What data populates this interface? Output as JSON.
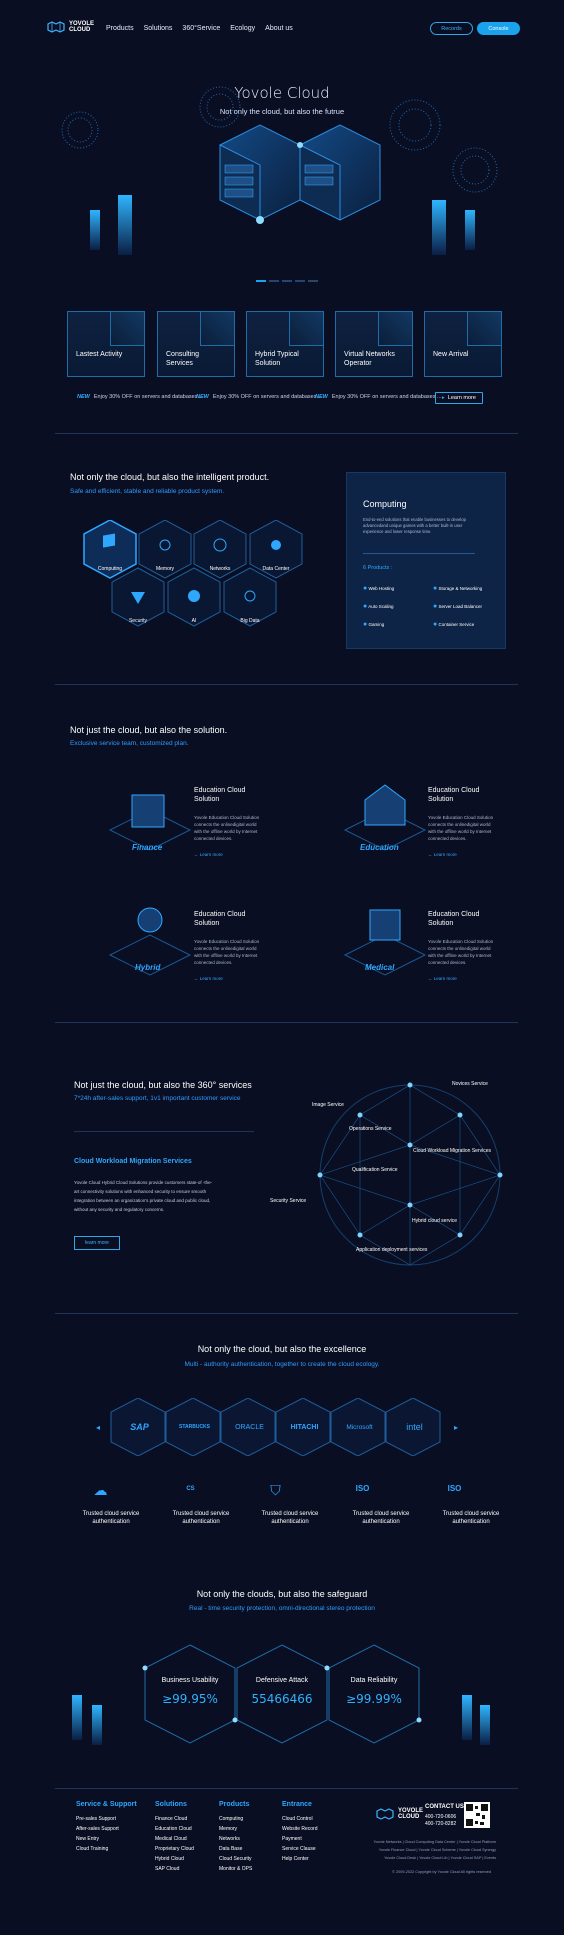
{
  "header": {
    "logo_top": "YOVOLE",
    "logo_bottom": "CLOUD",
    "nav": [
      "Products",
      "Solutions",
      "360°Service",
      "Ecology",
      "About us"
    ],
    "records_label": "Records",
    "console_label": "Console"
  },
  "hero": {
    "title": "Yovole Cloud",
    "subtitle": "Not only the cloud, but also the futrue"
  },
  "cards": [
    "Lastest Activity",
    "Consulting Services",
    "Hybrid Typical Solution",
    "Virtual Networks Operator",
    "New Arrival"
  ],
  "ticker": {
    "badge": "NEW",
    "items": [
      "Enjoy 30% OFF on servers and databases ...",
      "Enjoy 30% OFF on servers and databases ...",
      "Enjoy 30% OFF on servers and databases ..."
    ],
    "learn_more": "Learn more"
  },
  "product": {
    "title": "Not only the cloud, but also the intelligent product.",
    "subtitle": "Safe and efficient, stable and reliable product system.",
    "hexes": [
      "Computing",
      "Memory",
      "Networks",
      "Data Center",
      "Security",
      "AI",
      "Big Data"
    ],
    "panel": {
      "title": "Computing",
      "desc": "End-to-end solutions that enable businesses to develop advancedand unique games with a better built-in user experience and lower response time.",
      "count_label": "6 Products :",
      "products": [
        "Web Hosting",
        "Storage & Networking",
        "Auto Scaling",
        "Server Load Balancer",
        "Gaming",
        "Container Service"
      ]
    }
  },
  "solutions": {
    "title": "Not just the cloud, but also the solution.",
    "subtitle": "Exclusive service team, customized plan.",
    "items": [
      {
        "title": "Education Cloud Solution",
        "text": "Yovole Education Cloud Solution connects the onlinedigital world with the offline world by Internet connected devices.",
        "link": "Learn more",
        "tag": "Finance"
      },
      {
        "title": "Education Cloud Solution",
        "text": "Yovole Education Cloud Solution connects the onlinedigital world with the offline world by Internet connected devices.",
        "link": "Learn more",
        "tag": "Education"
      },
      {
        "title": "Education Cloud Solution",
        "text": "Yovole Education Cloud Solution connects the onlinedigital world with the offline world by Internet connected devices.",
        "link": "Learn more",
        "tag": "Hybrid"
      },
      {
        "title": "Education Cloud Solution",
        "text": "Yovole Education Cloud Solution connects the onlinedigital world with the offline world by Internet connected devices.",
        "link": "Learn more",
        "tag": "Medical"
      }
    ]
  },
  "service": {
    "title": "Not just the cloud, but also the 360° services",
    "subtitle": "7*24h after-sales support, 1v1 important customer service",
    "block_title": "Cloud Workload Migration Services",
    "block_text": "Yovole Cloud Hybrid Cloud Solutions provide customers state-of -the-art connectivity solutions with enhanced security to ensure smooth integration between an organization's private cloud and public cloud, without any security and regulatory concerns.",
    "learn_more": "learn more",
    "globe_labels": [
      "Novices Service",
      "Image Service",
      "Operations Service",
      "Cloud Workload Migration Services",
      "Qualification Service",
      "Security Service",
      "Hybrid cloud service",
      "Application deployment services"
    ]
  },
  "excellence": {
    "title": "Not only the cloud, but also the excellence",
    "subtitle": "Multi - authority authentication, together to create the cloud ecology.",
    "partners": [
      "SAP",
      "STARBUCKS",
      "ORACLE",
      "HITACHI",
      "Microsoft",
      "intel"
    ],
    "trust_label": "Trusted cloud service authentication",
    "badges": [
      "CS",
      "ISO",
      "ISO"
    ]
  },
  "safeguard": {
    "title": "Not only the clouds, but also the safeguard",
    "subtitle": "Real - time security protection, omni-directional stereo protection",
    "stats": [
      {
        "title": "Business Usability",
        "value": "≥99.95%"
      },
      {
        "title": "Defensive Attack",
        "value": "55466466"
      },
      {
        "title": "Data Reliability",
        "value": "≥99.99%"
      }
    ]
  },
  "footer": {
    "cols": [
      {
        "title": "Service & Support",
        "items": [
          "Pre-sales Support",
          "After-sales Support",
          "New Entry",
          "Cloud Training"
        ]
      },
      {
        "title": "Solutions",
        "items": [
          "Finance Cloud",
          "Education Cloud",
          "Medical Cloud",
          "Proprietary Cloud",
          "Hybrid Cloud",
          "SAP Cloud"
        ]
      },
      {
        "title": "Products",
        "items": [
          "Computing",
          "Memory",
          "Networks",
          "Data Base",
          "Cloud Security",
          "Monitor & OPS"
        ]
      },
      {
        "title": "Entrance",
        "items": [
          "Cloud Control",
          "Website Record",
          "Payment",
          "Service Clause",
          "Help Center"
        ]
      }
    ],
    "contact_title": "CONTACT US",
    "phone1": "400-720-0606",
    "phone2": "400-720-8282",
    "links1": "Yovole Networks  |  Cloud Computing Data Center  |  Yovole Cloud Platform",
    "links2": "Yovole Finance Cloud  |  Yovole Cloud Scheme  |  Yovole Cloud Synergy",
    "links3": "Yovole Cloud Desk  |  Yovole Cloud Lib  |  Yovole Cloud SAP  |  Events",
    "copyright": "© 2009-2022 Copyright by Yovole Cloud All rights reserved"
  },
  "colors": {
    "bg": "#0a0e22",
    "accent": "#1aa3ec",
    "card": "#0d2447"
  }
}
